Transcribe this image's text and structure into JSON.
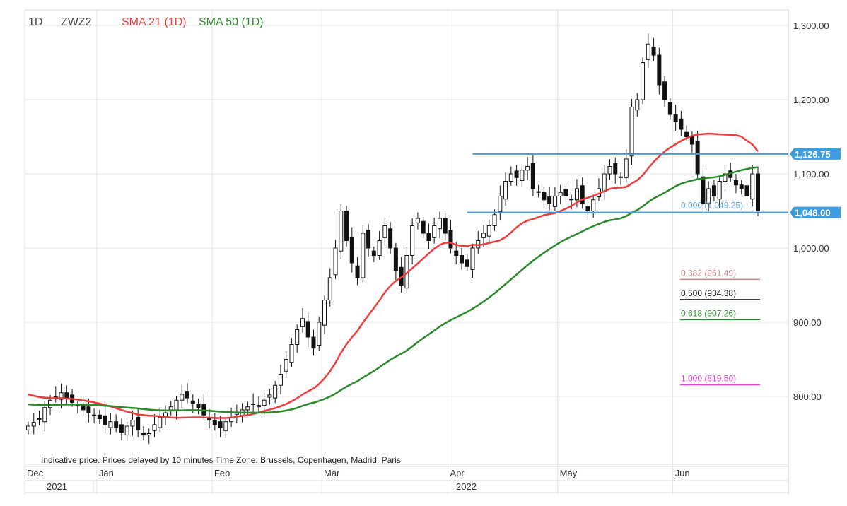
{
  "header": {
    "interval": "1D",
    "symbol": "ZWZ2",
    "sma21_label": "SMA 21  (1D)",
    "sma50_label": "SMA 50  (1D)"
  },
  "footer_note": "Indicative price. Prices delayed by 10 minutes    Time Zone: Brussels, Copenhagen, Madrid, Paris",
  "colors": {
    "sma21": "#f03c3c",
    "sma50": "#2a8a2a",
    "hline": "#3d9be0",
    "candle": "#111111"
  },
  "chart_data": {
    "type": "candlestick",
    "ylim": [
      700,
      1300
    ],
    "yticks": [
      {
        "v": 1300,
        "label": "1,300.00"
      },
      {
        "v": 1200,
        "label": "1,200.00"
      },
      {
        "v": 1100,
        "label": "1,100.00"
      },
      {
        "v": 1000,
        "label": "1,000.00"
      },
      {
        "v": 900,
        "label": "900.00"
      },
      {
        "v": 800,
        "label": "800.00"
      }
    ],
    "months": [
      {
        "label": "Dec",
        "start": 0
      },
      {
        "label": "Jan",
        "start": 13
      },
      {
        "label": "Feb",
        "start": 34
      },
      {
        "label": "Mar",
        "start": 54
      },
      {
        "label": "Apr",
        "start": 77
      },
      {
        "label": "May",
        "start": 97
      },
      {
        "label": "Jun",
        "start": 118
      }
    ],
    "years": [
      {
        "label": "2021",
        "start": 0
      },
      {
        "label": "2022",
        "start": 13
      }
    ],
    "closes": [
      760,
      765,
      770,
      785,
      795,
      800,
      805,
      798,
      792,
      788,
      782,
      778,
      775,
      770,
      762,
      766,
      758,
      752,
      760,
      768,
      755,
      748,
      750,
      762,
      772,
      778,
      786,
      795,
      803,
      798,
      790,
      785,
      775,
      768,
      762,
      758,
      766,
      772,
      778,
      782,
      786,
      790,
      788,
      795,
      802,
      815,
      830,
      850,
      870,
      890,
      905,
      880,
      865,
      900,
      930,
      960,
      1000,
      1050,
      1010,
      980,
      960,
      1020,
      1000,
      990,
      1010,
      1030,
      1000,
      970,
      950,
      990,
      1030,
      1040,
      1020,
      1010,
      1030,
      1040,
      1020,
      1000,
      990,
      980,
      975,
      1000,
      1010,
      1020,
      1030,
      1045,
      1070,
      1090,
      1100,
      1095,
      1105,
      1110,
      1080,
      1075,
      1065,
      1060,
      1070,
      1075,
      1070,
      1065,
      1080,
      1060,
      1050,
      1065,
      1080,
      1100,
      1110,
      1100,
      1095,
      1120,
      1190,
      1200,
      1250,
      1275,
      1260,
      1220,
      1200,
      1180,
      1170,
      1160,
      1150,
      1140,
      1100,
      1060,
      1080,
      1070,
      1090,
      1100,
      1095,
      1085,
      1080,
      1070,
      1100,
      1050
    ],
    "series": [
      {
        "name": "SMA 21 (1D)",
        "period": 21
      },
      {
        "name": "SMA 50 (1D)",
        "period": 50
      }
    ],
    "price_lines": [
      {
        "value": 1126.75,
        "label": "1,126.75",
        "from": 81
      },
      {
        "value": 1048.0,
        "label": "1,048.00",
        "from": 80
      }
    ],
    "fibonacci": [
      {
        "level": "0.000",
        "value": 1049.25,
        "label": "0.000 (1,049.25)",
        "color": "#5aa6e6"
      },
      {
        "level": "0.382",
        "value": 961.49,
        "label": "0.382 (961.49)",
        "color": "#c08a8a"
      },
      {
        "level": "0.500",
        "value": 934.38,
        "label": "0.500 (934.38)",
        "color": "#222222"
      },
      {
        "level": "0.618",
        "value": 907.26,
        "label": "0.618 (907.26)",
        "color": "#2a8a2a"
      },
      {
        "level": "1.000",
        "value": 819.5,
        "label": "1.000 (819.50)",
        "color": "#e040e0"
      }
    ]
  }
}
